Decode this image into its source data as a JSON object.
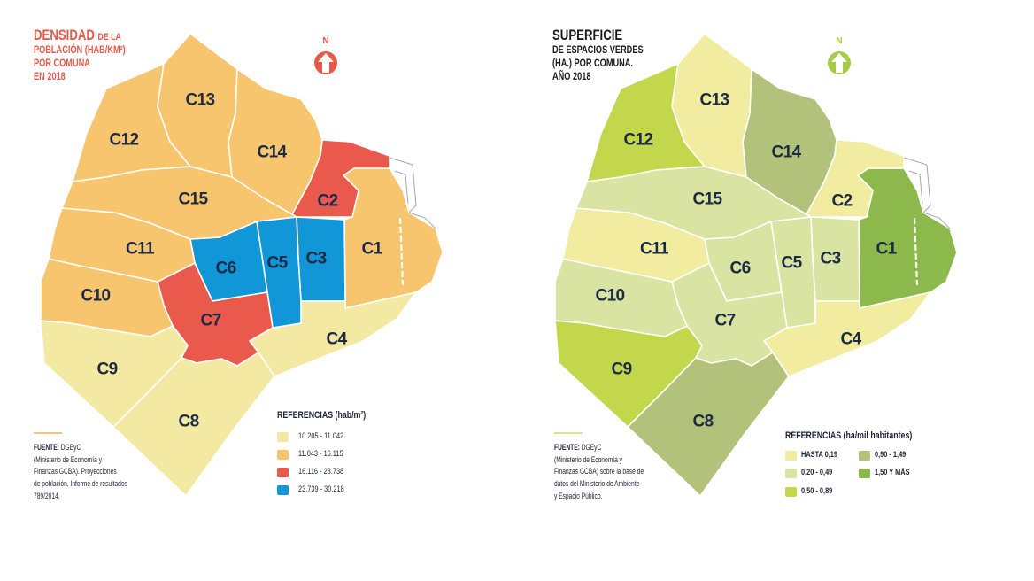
{
  "label_color": "#1d2a44",
  "maps": [
    {
      "title": {
        "main": "DENSIDAD",
        "main_suffix": "DE LA",
        "lines": [
          "POBLACIÓN (HAB/KM²)",
          "POR COMUNA",
          "EN 2018"
        ],
        "color": "#e8584a"
      },
      "north": {
        "label": "N",
        "color": "#e8584a"
      },
      "legend": {
        "title": "REFERENCIAS (hab/m²)",
        "items": [
          {
            "label": "10.205 - 11.042",
            "color": "#f3e9a3"
          },
          {
            "label": "11.043 - 16.115",
            "color": "#f8c56f"
          },
          {
            "label": "16.116 - 23.738",
            "color": "#e95a4c"
          },
          {
            "label": "23.739 - 30.218",
            "color": "#1196d8"
          }
        ]
      },
      "source": {
        "label": "FUENTE:",
        "value": "DGEyC",
        "lines": [
          "(Ministerio de Economía y",
          "Finanzas GCBA). Proyecciones",
          "de población. Informe de resultados",
          "789/2014."
        ],
        "rule_color": "#f4c27c"
      },
      "comunas": [
        {
          "label": "C1",
          "legend_class": 1
        },
        {
          "label": "C2",
          "legend_class": 2
        },
        {
          "label": "C3",
          "legend_class": 3
        },
        {
          "label": "C4",
          "legend_class": 0
        },
        {
          "label": "C5",
          "legend_class": 3
        },
        {
          "label": "C6",
          "legend_class": 3
        },
        {
          "label": "C7",
          "legend_class": 2
        },
        {
          "label": "C8",
          "legend_class": 0
        },
        {
          "label": "C9",
          "legend_class": 0
        },
        {
          "label": "C10",
          "legend_class": 1
        },
        {
          "label": "C11",
          "legend_class": 1
        },
        {
          "label": "C12",
          "legend_class": 1
        },
        {
          "label": "C13",
          "legend_class": 1
        },
        {
          "label": "C14",
          "legend_class": 1
        },
        {
          "label": "C15",
          "legend_class": 1
        }
      ]
    },
    {
      "title": {
        "main": "SUPERFICIE",
        "main_suffix": "",
        "lines": [
          "DE ESPACIOS VERDES",
          "(HA.) POR COMUNA.",
          "AÑO 2018"
        ],
        "color": "#1a1a1a"
      },
      "north": {
        "label": "N",
        "color": "#a6cc46"
      },
      "legend": {
        "title": "REFERENCIAS (ha/mil habitantes)",
        "items": [
          {
            "label": "HASTA 0,19",
            "color": "#f1ec9f"
          },
          {
            "label": "0,20 - 0,49",
            "color": "#d9e3a2"
          },
          {
            "label": "0,50 - 0,89",
            "color": "#c3d74c"
          },
          {
            "label": "0,90 - 1,49",
            "color": "#b3c27a"
          },
          {
            "label": "1,50 Y MÁS",
            "color": "#8cb84c"
          }
        ]
      },
      "source": {
        "label": "FUENTE:",
        "value": "DGEyC",
        "lines": [
          "(Ministerio de Economía y",
          "Finanzas GCBA) sobre la base de",
          "datos del Ministerio de Ambiente",
          "y Espacio Público."
        ],
        "rule_color": "#e4df8a"
      },
      "comunas": [
        {
          "label": "C1",
          "legend_class": 4
        },
        {
          "label": "C2",
          "legend_class": 0
        },
        {
          "label": "C3",
          "legend_class": 1
        },
        {
          "label": "C4",
          "legend_class": 0
        },
        {
          "label": "C5",
          "legend_class": 1
        },
        {
          "label": "C6",
          "legend_class": 1
        },
        {
          "label": "C7",
          "legend_class": 1
        },
        {
          "label": "C8",
          "legend_class": 3
        },
        {
          "label": "C9",
          "legend_class": 2
        },
        {
          "label": "C10",
          "legend_class": 1
        },
        {
          "label": "C11",
          "legend_class": 0
        },
        {
          "label": "C12",
          "legend_class": 2
        },
        {
          "label": "C13",
          "legend_class": 0
        },
        {
          "label": "C14",
          "legend_class": 3
        },
        {
          "label": "C15",
          "legend_class": 1
        }
      ]
    }
  ]
}
